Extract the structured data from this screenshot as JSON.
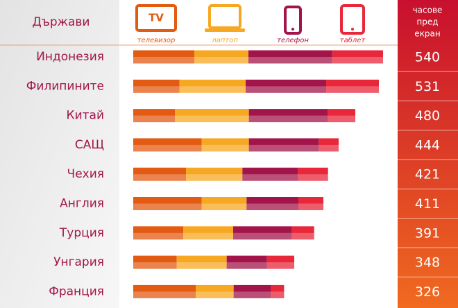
{
  "chart_data": {
    "type": "stacked-bar",
    "category_header": "Държави",
    "total_header": [
      "часове",
      "пред",
      "екран"
    ],
    "tv_icon_text": "TV",
    "categories": [
      "Индонезия",
      "Филипините",
      "Китай",
      "САЩ",
      "Чехия",
      "Англия",
      "Турция",
      "Унгария",
      "Франция"
    ],
    "totals": [
      540,
      531,
      480,
      444,
      421,
      411,
      391,
      348,
      326
    ],
    "series": [
      {
        "name": "телевизор",
        "color": "#e35a12",
        "values": [
          132,
          100,
          90,
          148,
          114,
          148,
          108,
          94,
          135
        ]
      },
      {
        "name": "лаптоп",
        "color": "#f7a823",
        "values": [
          117,
          143,
          160,
          102,
          122,
          97,
          108,
          108,
          82
        ]
      },
      {
        "name": "телефон",
        "color": "#a3154a",
        "values": [
          181,
          174,
          171,
          151,
          120,
          112,
          127,
          87,
          80
        ]
      },
      {
        "name": "таблет",
        "color": "#e8273a",
        "values": [
          110,
          114,
          59,
          43,
          65,
          54,
          48,
          59,
          29
        ]
      }
    ]
  }
}
